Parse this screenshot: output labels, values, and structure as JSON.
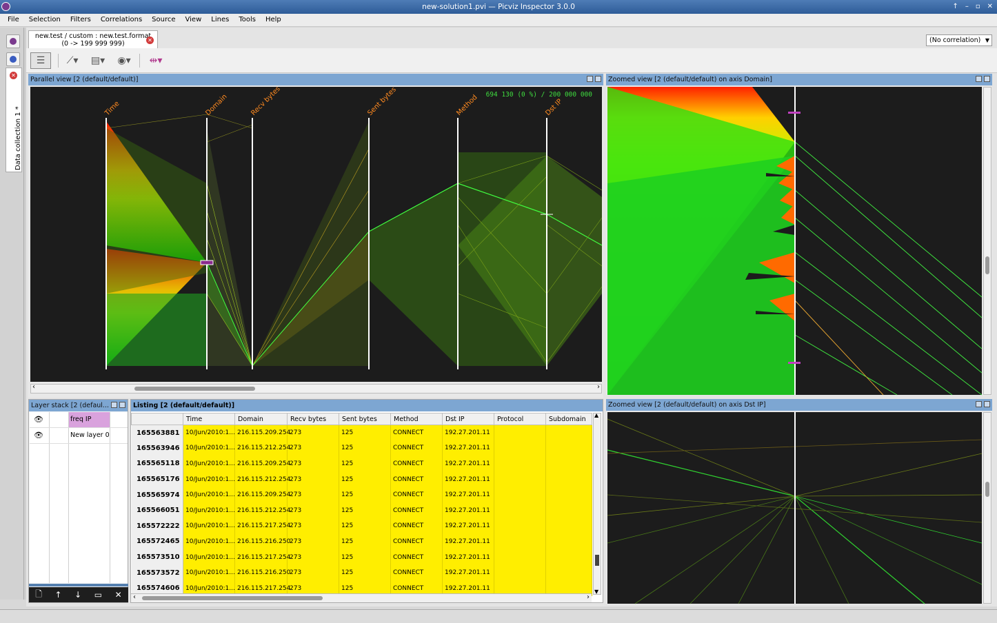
{
  "window": {
    "title": "new-solution1.pvi — Picviz Inspector 3.0.0",
    "controls": [
      "↑",
      "–",
      "▫",
      "✕"
    ]
  },
  "menu": [
    "File",
    "Selection",
    "Filters",
    "Correlations",
    "Source",
    "View",
    "Lines",
    "Tools",
    "Help"
  ],
  "sidebar": {
    "tab_label": "Data collection 1 *"
  },
  "doc_tab": {
    "line1": "new.test / custom : new.test.format",
    "line2": "(0 -> 199 999 999)"
  },
  "correlation": {
    "value": "(No correlation)"
  },
  "parallel_view": {
    "title": "Parallel view [2 (default/default)]",
    "count": "694 130 (0 %) / 200 000 000",
    "axes": [
      "Time",
      "Domain",
      "Recv bytes",
      "Sent bytes",
      "Method",
      "Dst IP"
    ]
  },
  "zoomed_domain": {
    "title": "Zoomed view [2 (default/default) on axis Domain]"
  },
  "zoomed_dstip": {
    "title": "Zoomed view [2 (default/default) on axis Dst IP]"
  },
  "layer_stack": {
    "title": "Layer stack [2 (defaul...",
    "layers": [
      {
        "name": "freq IP",
        "color": "#d9a2dd"
      },
      {
        "name": "New layer 0",
        "color": "#ffffff"
      }
    ]
  },
  "listing": {
    "title": "Listing [2 (default/default)]",
    "columns": [
      "Time",
      "Domain",
      "Recv bytes",
      "Sent bytes",
      "Method",
      "Dst IP",
      "Protocol",
      "Subdomain"
    ],
    "rows": [
      {
        "id": "165563881",
        "time": "10/Jun/2010:1...",
        "domain": "216.115.209.254",
        "recv": "273",
        "sent": "125",
        "method": "CONNECT",
        "dst": "192.27.201.11"
      },
      {
        "id": "165563946",
        "time": "10/Jun/2010:1...",
        "domain": "216.115.212.254",
        "recv": "273",
        "sent": "125",
        "method": "CONNECT",
        "dst": "192.27.201.11"
      },
      {
        "id": "165565118",
        "time": "10/Jun/2010:1...",
        "domain": "216.115.209.254",
        "recv": "273",
        "sent": "125",
        "method": "CONNECT",
        "dst": "192.27.201.11"
      },
      {
        "id": "165565176",
        "time": "10/Jun/2010:1...",
        "domain": "216.115.212.254",
        "recv": "273",
        "sent": "125",
        "method": "CONNECT",
        "dst": "192.27.201.11"
      },
      {
        "id": "165565974",
        "time": "10/Jun/2010:1...",
        "domain": "216.115.209.254",
        "recv": "273",
        "sent": "125",
        "method": "CONNECT",
        "dst": "192.27.201.11"
      },
      {
        "id": "165566051",
        "time": "10/Jun/2010:1...",
        "domain": "216.115.212.254",
        "recv": "273",
        "sent": "125",
        "method": "CONNECT",
        "dst": "192.27.201.11"
      },
      {
        "id": "165572222",
        "time": "10/Jun/2010:1...",
        "domain": "216.115.217.254",
        "recv": "273",
        "sent": "125",
        "method": "CONNECT",
        "dst": "192.27.201.11"
      },
      {
        "id": "165572465",
        "time": "10/Jun/2010:1...",
        "domain": "216.115.216.250",
        "recv": "273",
        "sent": "125",
        "method": "CONNECT",
        "dst": "192.27.201.11"
      },
      {
        "id": "165573510",
        "time": "10/Jun/2010:1...",
        "domain": "216.115.217.254",
        "recv": "273",
        "sent": "125",
        "method": "CONNECT",
        "dst": "192.27.201.11"
      },
      {
        "id": "165573572",
        "time": "10/Jun/2010:1...",
        "domain": "216.115.216.250",
        "recv": "273",
        "sent": "125",
        "method": "CONNECT",
        "dst": "192.27.201.11"
      },
      {
        "id": "165574606",
        "time": "10/Jun/2010:1...",
        "domain": "216.115.217.254",
        "recv": "273",
        "sent": "125",
        "method": "CONNECT",
        "dst": "192.27.201.11"
      }
    ]
  },
  "icons": {
    "layer_visible": "eye-icon",
    "layer_buttons": [
      "new-layer-icon",
      "move-up-icon",
      "move-down-icon",
      "duplicate-layer-icon",
      "delete-layer-icon"
    ]
  }
}
